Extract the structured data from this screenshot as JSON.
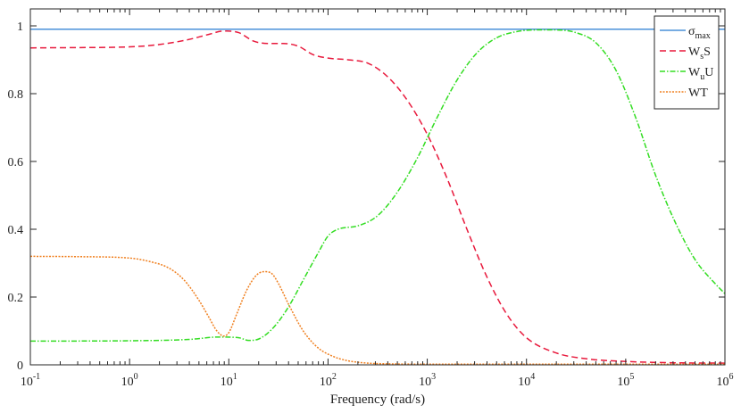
{
  "chart_data": {
    "type": "line",
    "title": "",
    "xlabel": "Frequency (rad/s)",
    "ylabel": "",
    "xscale": "log",
    "xlim_exp": [
      -1,
      6
    ],
    "ylim": [
      0,
      1.05
    ],
    "grid": false,
    "legend_position": "top-right",
    "x_tick_labels": [
      {
        "base": "10",
        "exp": "-1"
      },
      {
        "base": "10",
        "exp": "0"
      },
      {
        "base": "10",
        "exp": "1"
      },
      {
        "base": "10",
        "exp": "2"
      },
      {
        "base": "10",
        "exp": "3"
      },
      {
        "base": "10",
        "exp": "4"
      },
      {
        "base": "10",
        "exp": "5"
      },
      {
        "base": "10",
        "exp": "6"
      }
    ],
    "y_ticks": [
      0,
      0.2,
      0.4,
      0.6,
      0.8,
      1
    ],
    "y_tick_labels": [
      "0",
      "0.2",
      "0.4",
      "0.6",
      "0.8",
      "1"
    ],
    "series": [
      {
        "name": "sigma_max",
        "legend_main": "σ",
        "legend_sub": "max",
        "legend_tail": "",
        "color": "#4a90d9",
        "dash": "",
        "log10_x": [
          -1,
          6
        ],
        "y": [
          0.99,
          0.99
        ]
      },
      {
        "name": "WsS",
        "legend_main": "W",
        "legend_sub": "s",
        "legend_tail": "S",
        "color": "#e8193c",
        "dash": "7,4",
        "log10_x": [
          -1,
          -0.5,
          0,
          0.3,
          0.6,
          0.8,
          0.95,
          1.1,
          1.25,
          1.4,
          1.55,
          1.7,
          1.85,
          2.0,
          2.2,
          2.4,
          2.6,
          2.8,
          3.0,
          3.2,
          3.4,
          3.6,
          3.8,
          4.0,
          4.3,
          4.6,
          5.0,
          5.5,
          6.0
        ],
        "y": [
          0.935,
          0.936,
          0.938,
          0.945,
          0.96,
          0.975,
          0.985,
          0.98,
          0.955,
          0.948,
          0.948,
          0.94,
          0.915,
          0.905,
          0.9,
          0.89,
          0.85,
          0.78,
          0.68,
          0.55,
          0.4,
          0.26,
          0.15,
          0.08,
          0.035,
          0.018,
          0.01,
          0.006,
          0.005
        ]
      },
      {
        "name": "WuU",
        "legend_main": "W",
        "legend_sub": "u",
        "legend_tail": "U",
        "color": "#33dd22",
        "dash": "6,2,1.5,2",
        "log10_x": [
          -1,
          0,
          0.6,
          0.9,
          1.1,
          1.2,
          1.3,
          1.45,
          1.6,
          1.75,
          1.9,
          2.0,
          2.1,
          2.3,
          2.5,
          2.7,
          2.9,
          3.1,
          3.3,
          3.5,
          3.7,
          3.9,
          4.1,
          4.3,
          4.5,
          4.7,
          4.9,
          5.1,
          5.3,
          5.5,
          5.7,
          5.9,
          6.0
        ],
        "y": [
          0.07,
          0.071,
          0.075,
          0.082,
          0.08,
          0.072,
          0.076,
          0.11,
          0.17,
          0.25,
          0.33,
          0.38,
          0.4,
          0.41,
          0.44,
          0.51,
          0.61,
          0.73,
          0.84,
          0.92,
          0.965,
          0.983,
          0.988,
          0.988,
          0.98,
          0.95,
          0.87,
          0.73,
          0.56,
          0.42,
          0.31,
          0.24,
          0.21
        ]
      },
      {
        "name": "WT",
        "legend_main": "WT",
        "legend_sub": "",
        "legend_tail": "",
        "color": "#f08020",
        "dash": "2,1.5",
        "log10_x": [
          -1,
          -0.5,
          0,
          0.2,
          0.4,
          0.55,
          0.7,
          0.8,
          0.88,
          0.95,
          1.0,
          1.08,
          1.18,
          1.28,
          1.36,
          1.43,
          1.5,
          1.6,
          1.75,
          1.9,
          2.05,
          2.2,
          2.4,
          2.6,
          3.0,
          4.0,
          5.0,
          6.0
        ],
        "y": [
          0.32,
          0.319,
          0.315,
          0.305,
          0.285,
          0.25,
          0.19,
          0.14,
          0.1,
          0.085,
          0.095,
          0.15,
          0.22,
          0.265,
          0.275,
          0.27,
          0.24,
          0.18,
          0.1,
          0.05,
          0.025,
          0.012,
          0.005,
          0.003,
          0.002,
          0.002,
          0.002,
          0.002
        ]
      }
    ]
  }
}
